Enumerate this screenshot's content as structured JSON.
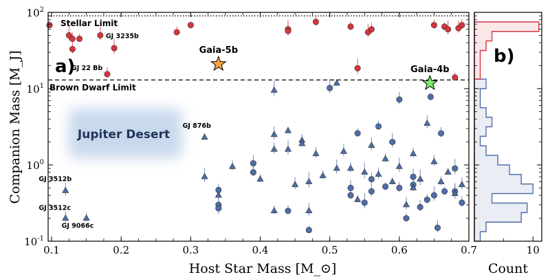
{
  "chart_data": [
    {
      "type": "scatter",
      "panel_label": "a)",
      "xlabel": "Host Star Mass [M_⊙]",
      "ylabel": "Companion Mass [M_J]",
      "xlim": [
        0.095,
        0.7
      ],
      "ylim": [
        0.1,
        100
      ],
      "yscale": "log",
      "xticks": [
        "0.1",
        "0.2",
        "0.3",
        "0.4",
        "0.5",
        "0.6",
        "0.7"
      ],
      "yticks": [
        "10^-1",
        "10^0",
        "10^1",
        "10^2"
      ],
      "reference_lines": [
        {
          "label": "Stellar Limit",
          "y": 90,
          "style": "dotted"
        },
        {
          "label": "Brown Dwarf Limit",
          "y": 13,
          "style": "dashed"
        }
      ],
      "region_label": "Jupiter Desert",
      "highlights": [
        {
          "label": "Gaia-5b",
          "x": 0.34,
          "y": 21,
          "color": "#f5a33c"
        },
        {
          "label": "Gaia-4b",
          "x": 0.644,
          "y": 11.8,
          "color": "#7fe86a"
        }
      ],
      "point_labels": [
        {
          "label": "GJ 3235b",
          "x": 0.17,
          "y": 50
        },
        {
          "label": "GJ 22 Bb",
          "x": 0.18,
          "y": 15.5
        },
        {
          "label": "GJ 876b",
          "x": 0.32,
          "y": 2.3
        },
        {
          "label": "GJ 3512b",
          "x": 0.123,
          "y": 0.46
        },
        {
          "label": "GJ 3512c",
          "x": 0.123,
          "y": 0.2
        },
        {
          "label": "GJ 9066c",
          "x": 0.15,
          "y": 0.2
        }
      ],
      "series": [
        {
          "name": "",
          "marker": "circle",
          "color": "#d6363e",
          "x": [
            0.097,
            0.125,
            0.13,
            0.13,
            0.14,
            0.19,
            0.17,
            0.18,
            0.28,
            0.3,
            0.44,
            0.44,
            0.48,
            0.53,
            0.54,
            0.555,
            0.56,
            0.65,
            0.665,
            0.67,
            0.685,
            0.69,
            0.68
          ],
          "y": [
            68,
            50,
            33,
            45,
            45,
            34,
            50,
            15.5,
            55,
            68,
            60,
            57,
            75,
            65,
            18.5,
            55,
            60,
            68,
            65,
            60,
            62,
            68,
            14
          ]
        },
        {
          "name": "",
          "marker": "circle",
          "color": "#4f6ea8",
          "x": [
            0.34,
            0.34,
            0.34,
            0.39,
            0.39,
            0.44,
            0.47,
            0.5,
            0.53,
            0.53,
            0.54,
            0.55,
            0.56,
            0.56,
            0.57,
            0.58,
            0.59,
            0.6,
            0.6,
            0.61,
            0.62,
            0.62,
            0.63,
            0.64,
            0.645,
            0.65,
            0.655,
            0.66,
            0.665,
            0.68,
            0.68,
            0.69
          ],
          "y": [
            0.47,
            0.3,
            0.27,
            1.05,
            0.8,
            0.25,
            0.14,
            10.2,
            0.5,
            0.4,
            2.6,
            0.32,
            0.45,
            0.65,
            3.2,
            0.52,
            2.0,
            7.2,
            0.5,
            0.2,
            0.55,
            0.7,
            0.28,
            0.35,
            7.8,
            0.4,
            0.15,
            2.6,
            0.45,
            0.9,
            0.45,
            0.32
          ]
        },
        {
          "name": "",
          "marker": "triangle",
          "color": "#4f6ea8",
          "x": [
            0.12,
            0.12,
            0.15,
            0.32,
            0.32,
            0.34,
            0.36,
            0.4,
            0.42,
            0.42,
            0.42,
            0.42,
            0.44,
            0.44,
            0.45,
            0.46,
            0.46,
            0.47,
            0.47,
            0.48,
            0.49,
            0.51,
            0.51,
            0.52,
            0.53,
            0.54,
            0.55,
            0.56,
            0.57,
            0.58,
            0.59,
            0.6,
            0.61,
            0.62,
            0.62,
            0.63,
            0.64,
            0.65,
            0.66,
            0.67,
            0.68,
            0.69
          ],
          "y": [
            0.46,
            0.2,
            0.2,
            2.3,
            0.7,
            0.4,
            0.95,
            0.65,
            9.5,
            2.5,
            1.6,
            0.25,
            2.8,
            1.6,
            0.55,
            2.1,
            1.9,
            0.6,
            0.25,
            1.4,
            0.72,
            11.8,
            0.9,
            1.5,
            0.9,
            0.35,
            0.8,
            1.8,
            0.75,
            1.2,
            0.6,
            0.95,
            0.3,
            1.4,
            0.5,
            0.65,
            3.5,
            1.1,
            0.6,
            0.8,
            0.42,
            0.55
          ]
        }
      ]
    },
    {
      "type": "histogram",
      "orientation": "horizontal",
      "panel_label": "b)",
      "xlabel": "Count",
      "xticks": [
        "10"
      ],
      "yscale": "log",
      "bins_log10_edges": [
        -1.0,
        -0.875,
        -0.75,
        -0.625,
        -0.5,
        -0.375,
        -0.25,
        -0.125,
        0.0,
        0.125,
        0.25,
        0.375,
        0.5,
        0.625,
        0.75,
        0.875,
        1.0,
        1.125,
        1.25,
        1.375,
        1.5,
        1.625,
        1.75,
        1.875,
        2.0
      ],
      "series": [
        {
          "name": "",
          "color": "#4f6ea8",
          "counts": [
            1,
            2,
            8,
            9,
            3,
            10,
            8,
            6,
            4,
            2,
            1,
            2,
            3,
            2,
            1,
            1,
            2,
            0,
            0,
            0,
            0,
            0,
            0,
            0
          ]
        },
        {
          "name": "",
          "color": "#d6363e",
          "counts": [
            0,
            0,
            0,
            0,
            0,
            0,
            0,
            0,
            0,
            0,
            0,
            0,
            0,
            0,
            0,
            0,
            0,
            1,
            1,
            1,
            2,
            3,
            11,
            0
          ]
        }
      ]
    }
  ]
}
